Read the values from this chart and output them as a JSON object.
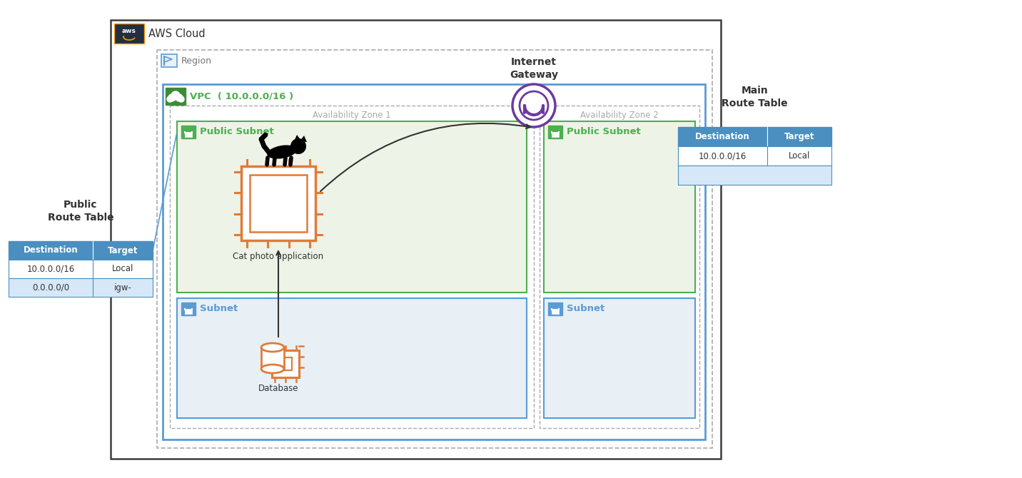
{
  "bg_color": "#ffffff",
  "outer_border_color": "#3d3d3d",
  "aws_cloud_label": "AWS Cloud",
  "region_label": "Region",
  "vpc_label": "VPC  ( 10.0.0.0/16 )",
  "az1_label": "Availability Zone 1",
  "az2_label": "Availability Zone 2",
  "public_subnet_label": "Public Subnet",
  "subnet_label": "Subnet",
  "igw_label": "Internet\nGateway",
  "ec2_label": "Cat photo application",
  "db_label": "Database",
  "public_rt_title": "Public\nRoute Table",
  "main_rt_title": "Main\nRoute Table",
  "public_rt_rows": [
    [
      "10.0.0.0/16",
      "Local"
    ],
    [
      "0.0.0.0/0",
      "igw-"
    ]
  ],
  "main_rt_rows": [
    [
      "10.0.0.0/16",
      "Local"
    ]
  ],
  "table_header_bg": "#4a8fc0",
  "table_header_fg": "#ffffff",
  "table_row1_bg": "#ffffff",
  "table_row2_bg": "#d6e8f7",
  "table_border_color": "#4a8fc0",
  "dashed_border_color": "#aaaaaa",
  "solid_border_color": "#5b9bd5",
  "vpc_green": "#3d8b37",
  "vpc_green_light": "#4caf50",
  "public_subnet_color": "#4caf50",
  "subnet_color": "#5b9bd5",
  "igw_color": "#6b3a9e",
  "ec2_color": "#e07b39",
  "db_color": "#e07b39",
  "region_icon_color": "#5b9bd5",
  "arrow_color": "#333333",
  "connector_color": "#5b9bd5",
  "public_subnet_bg": "#eef3e8",
  "private_subnet_bg": "#e8eff5",
  "aws_dark": "#232f3e",
  "aws_orange": "#ff9900"
}
